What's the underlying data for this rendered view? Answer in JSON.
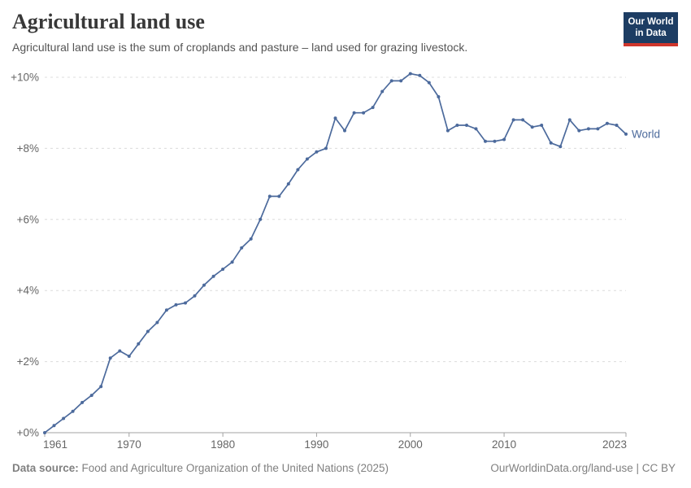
{
  "header": {
    "title": "Agricultural land use",
    "subtitle": "Agricultural land use is the sum of croplands and pasture – land used for grazing livestock."
  },
  "logo": {
    "line1": "Our World",
    "line2": "in Data",
    "background_color": "#1d3d63",
    "bar_color": "#d0362c"
  },
  "chart_data": {
    "type": "line",
    "title": "Agricultural land use",
    "xlabel": "",
    "ylabel": "",
    "xlim": [
      1961,
      2023
    ],
    "ylim": [
      0,
      10.5
    ],
    "x_ticks": [
      1961,
      1970,
      1980,
      1990,
      2000,
      2010,
      2023
    ],
    "y_ticks": [
      0,
      2,
      4,
      6,
      8,
      10
    ],
    "y_tick_prefix": "+",
    "y_tick_suffix": "%",
    "grid": "horizontal-dashed",
    "legend_position": "end-of-line-label",
    "series": [
      {
        "name": "World",
        "color": "#4C6A9C",
        "years": [
          1961,
          1962,
          1963,
          1964,
          1965,
          1966,
          1967,
          1968,
          1969,
          1970,
          1971,
          1972,
          1973,
          1974,
          1975,
          1976,
          1977,
          1978,
          1979,
          1980,
          1981,
          1982,
          1983,
          1984,
          1985,
          1986,
          1987,
          1988,
          1989,
          1990,
          1991,
          1992,
          1993,
          1994,
          1995,
          1996,
          1997,
          1998,
          1999,
          2000,
          2001,
          2002,
          2003,
          2004,
          2005,
          2006,
          2007,
          2008,
          2009,
          2010,
          2011,
          2012,
          2013,
          2014,
          2015,
          2016,
          2017,
          2018,
          2019,
          2020,
          2021,
          2022,
          2023
        ],
        "values": [
          0,
          0.2,
          0.4,
          0.6,
          0.85,
          1.05,
          1.3,
          2.1,
          2.3,
          2.15,
          2.5,
          2.85,
          3.1,
          3.45,
          3.6,
          3.65,
          3.85,
          4.15,
          4.4,
          4.6,
          4.8,
          5.2,
          5.45,
          6.0,
          6.65,
          6.65,
          7.0,
          7.4,
          7.7,
          7.9,
          8.0,
          8.85,
          8.5,
          9.0,
          9.0,
          9.15,
          9.6,
          9.9,
          9.9,
          10.1,
          10.05,
          9.85,
          9.45,
          8.5,
          8.65,
          8.65,
          8.55,
          8.2,
          8.2,
          8.25,
          8.8,
          8.8,
          8.6,
          8.65,
          8.15,
          8.05,
          8.8,
          8.5,
          8.55,
          8.55,
          8.7,
          8.65,
          8.4
        ]
      }
    ]
  },
  "footer": {
    "source_label": "Data source:",
    "source_text": " Food and Agriculture Organization of the United Nations (2025)",
    "right_text": "OurWorldinData.org/land-use | CC BY"
  }
}
